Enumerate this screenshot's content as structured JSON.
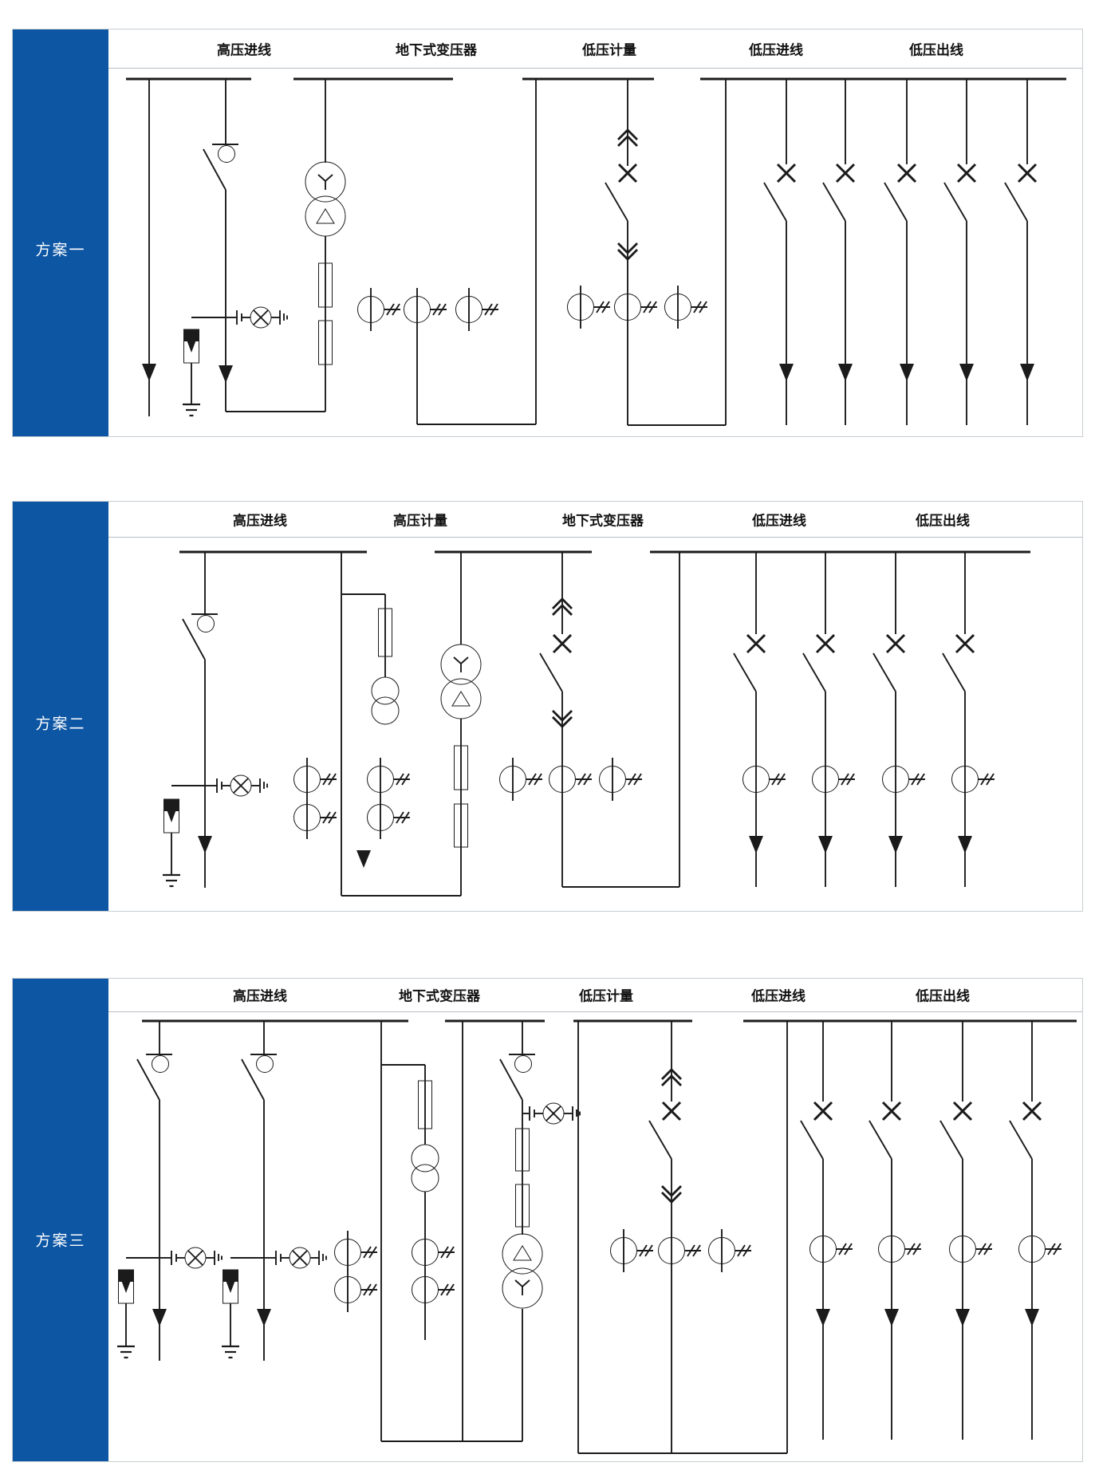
{
  "colors": {
    "sidebar": "#0d56a4",
    "sidebar_text": "#ffffff",
    "line": "#1b1b1b",
    "panel_border": "#c9cdd2",
    "header_text": "#111111",
    "background": "#ffffff"
  },
  "panels": [
    {
      "label": "方案一",
      "columns": [
        "高压进线",
        "地下式变压器",
        "低压计量",
        "低压进线",
        "低压出线"
      ]
    },
    {
      "label": "方案二",
      "columns": [
        "高压进线",
        "高压计量",
        "地下式变压器",
        "低压进线",
        "低压出线"
      ]
    },
    {
      "label": "方案三",
      "columns": [
        "高压进线",
        "地下式变压器",
        "低压计量",
        "低压进线",
        "低压出线"
      ]
    }
  ],
  "icon_names": [
    "busbar",
    "load-break-switch-icon",
    "circuit-breaker-x-icon",
    "disconnector-blade-icon",
    "withdrawable-contact-icon",
    "fuse-icon",
    "transformer-icon",
    "voltage-transformer-icon",
    "current-transformer-icon",
    "surge-arrester-icon",
    "earth-ground-icon",
    "live-line-indicator-icon",
    "cable-feeder-arrow-icon"
  ]
}
